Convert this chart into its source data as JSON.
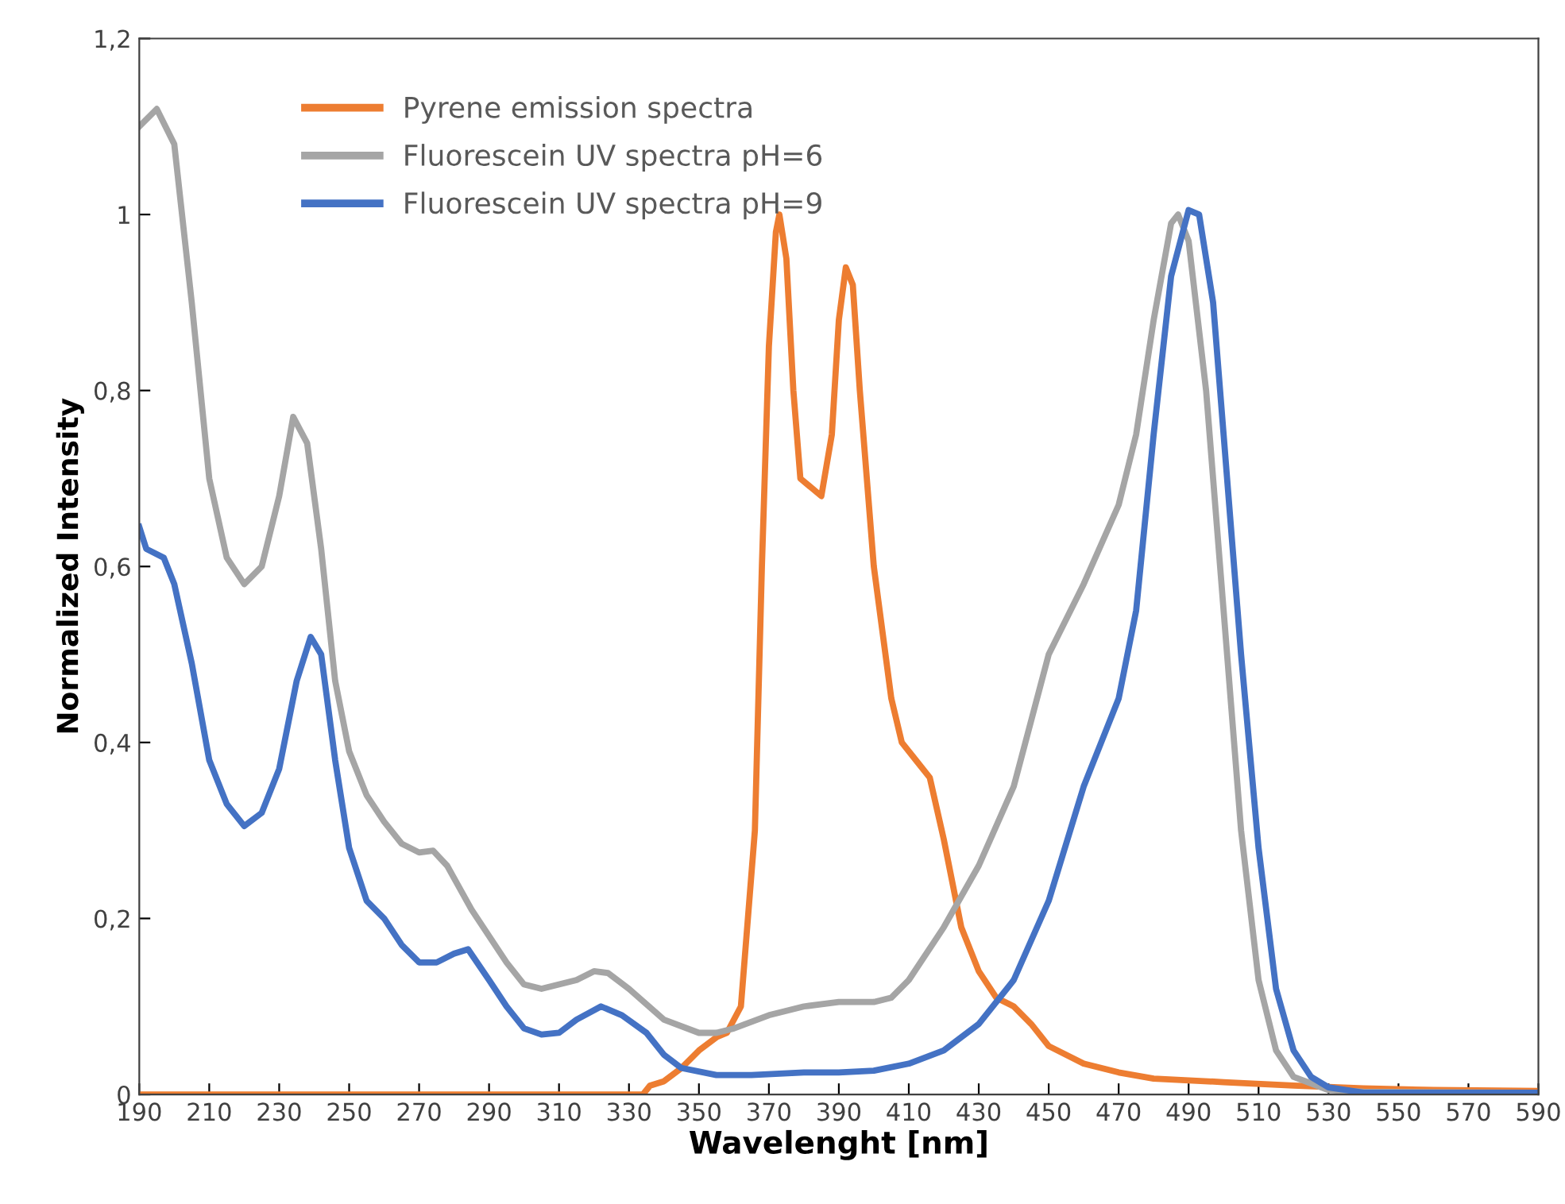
{
  "chart_data": {
    "type": "line",
    "xlabel": "Wavelenght [nm]",
    "ylabel": "Normalized Intensity",
    "xlim": [
      190,
      590
    ],
    "xticks": [
      190,
      210,
      230,
      250,
      270,
      290,
      310,
      330,
      350,
      370,
      390,
      410,
      430,
      450,
      470,
      490,
      510,
      530,
      550,
      570,
      590
    ],
    "ylim": [
      0,
      1.2
    ],
    "yticks": [
      {
        "value": 0,
        "label": "0"
      },
      {
        "value": 0.2,
        "label": "0,2"
      },
      {
        "value": 0.4,
        "label": "0,4"
      },
      {
        "value": 0.6,
        "label": "0,6"
      },
      {
        "value": 0.8,
        "label": "0,8"
      },
      {
        "value": 1,
        "label": "1"
      },
      {
        "value": 1.2,
        "label": "1,2"
      }
    ],
    "grid": false,
    "legend": "top left",
    "marker": "none",
    "line_style": "solid",
    "series": [
      {
        "name": "Pyrene emission spectra",
        "color": "#ed7d31",
        "x": [
          190,
          334,
          336,
          340,
          345,
          350,
          355,
          358,
          362,
          366,
          368,
          370,
          372,
          373,
          375,
          377,
          379,
          382,
          385,
          388,
          390,
          392,
          394,
          396,
          400,
          405,
          408,
          412,
          416,
          420,
          425,
          430,
          435,
          440,
          445,
          450,
          460,
          470,
          480,
          500,
          520,
          540,
          560,
          590
        ],
        "values": [
          0,
          0,
          0.01,
          0.015,
          0.03,
          0.05,
          0.065,
          0.07,
          0.1,
          0.3,
          0.6,
          0.85,
          0.98,
          1.0,
          0.95,
          0.8,
          0.7,
          0.69,
          0.68,
          0.75,
          0.88,
          0.94,
          0.92,
          0.8,
          0.6,
          0.45,
          0.4,
          0.38,
          0.36,
          0.29,
          0.19,
          0.14,
          0.11,
          0.1,
          0.08,
          0.055,
          0.035,
          0.025,
          0.018,
          0.014,
          0.01,
          0.007,
          0.005,
          0.004
        ]
      },
      {
        "name": "Fluorescein UV spectra pH=6",
        "color": "#a5a5a5",
        "x": [
          190,
          195,
          200,
          205,
          210,
          215,
          220,
          225,
          230,
          234,
          238,
          242,
          246,
          250,
          255,
          260,
          265,
          270,
          274,
          278,
          285,
          290,
          295,
          300,
          305,
          310,
          315,
          320,
          324,
          330,
          340,
          350,
          355,
          360,
          370,
          380,
          390,
          400,
          405,
          410,
          420,
          430,
          440,
          450,
          460,
          470,
          475,
          480,
          485,
          487,
          490,
          495,
          500,
          505,
          510,
          515,
          520,
          530,
          540,
          590
        ],
        "values": [
          1.1,
          1.12,
          1.08,
          0.9,
          0.7,
          0.61,
          0.58,
          0.6,
          0.68,
          0.77,
          0.74,
          0.62,
          0.47,
          0.39,
          0.34,
          0.31,
          0.285,
          0.275,
          0.277,
          0.26,
          0.21,
          0.18,
          0.15,
          0.125,
          0.12,
          0.125,
          0.13,
          0.14,
          0.138,
          0.12,
          0.085,
          0.07,
          0.07,
          0.075,
          0.09,
          0.1,
          0.105,
          0.105,
          0.11,
          0.13,
          0.19,
          0.26,
          0.35,
          0.5,
          0.58,
          0.67,
          0.75,
          0.88,
          0.99,
          1.0,
          0.97,
          0.8,
          0.55,
          0.3,
          0.13,
          0.05,
          0.02,
          0.005,
          0.003,
          0.002
        ]
      },
      {
        "name": "Fluorescein UV spectra pH=9",
        "color": "#4472c4",
        "x": [
          190,
          192,
          197,
          200,
          205,
          210,
          215,
          220,
          225,
          230,
          235,
          239,
          242,
          246,
          250,
          255,
          260,
          265,
          270,
          275,
          280,
          284,
          290,
          295,
          300,
          305,
          310,
          315,
          322,
          328,
          335,
          340,
          345,
          355,
          365,
          380,
          390,
          400,
          410,
          420,
          430,
          440,
          450,
          460,
          465,
          470,
          475,
          480,
          485,
          490,
          493,
          497,
          500,
          505,
          510,
          515,
          520,
          525,
          530,
          540,
          590
        ],
        "values": [
          0.645,
          0.62,
          0.61,
          0.58,
          0.49,
          0.38,
          0.33,
          0.305,
          0.32,
          0.37,
          0.47,
          0.52,
          0.5,
          0.38,
          0.28,
          0.22,
          0.2,
          0.17,
          0.15,
          0.15,
          0.16,
          0.165,
          0.13,
          0.1,
          0.075,
          0.068,
          0.07,
          0.085,
          0.1,
          0.09,
          0.07,
          0.045,
          0.03,
          0.022,
          0.022,
          0.025,
          0.025,
          0.027,
          0.035,
          0.05,
          0.08,
          0.13,
          0.22,
          0.35,
          0.4,
          0.45,
          0.55,
          0.75,
          0.93,
          1.005,
          1.0,
          0.9,
          0.75,
          0.5,
          0.28,
          0.12,
          0.05,
          0.02,
          0.008,
          0.002,
          0.002
        ]
      }
    ]
  }
}
